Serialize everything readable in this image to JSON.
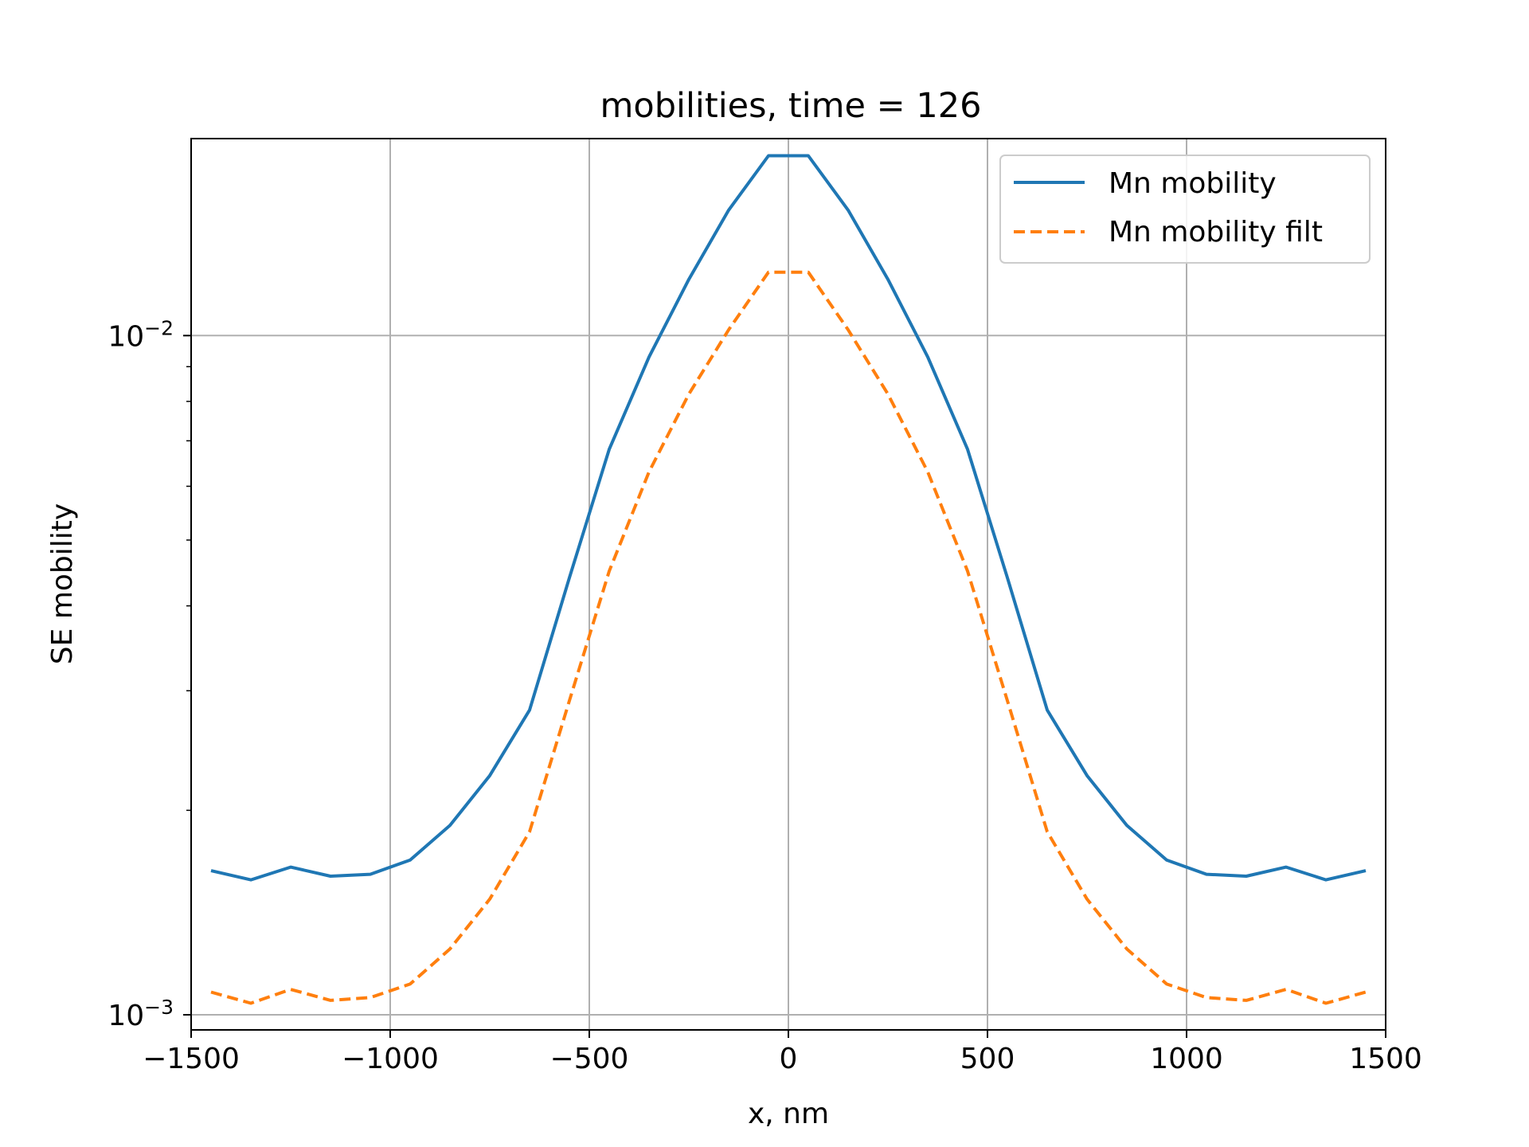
{
  "chart_data": {
    "type": "line",
    "title": "mobilities, time = 126",
    "xlabel": "x, nm",
    "ylabel": "SE mobility",
    "xlim": [
      -1500,
      1500
    ],
    "ylim": [
      0.00095,
      0.0195
    ],
    "yscale": "log",
    "grid": true,
    "legend_position": "top-right",
    "x_ticks": [
      -1500,
      -1000,
      -500,
      0,
      500,
      1000,
      1500
    ],
    "x_tick_labels": [
      "−1500",
      "−1000",
      "−500",
      "0",
      "500",
      "1000",
      "1500"
    ],
    "y_ticks": [
      0.001,
      0.01
    ],
    "y_tick_labels": [
      {
        "base": "10",
        "exp": "−3"
      },
      {
        "base": "10",
        "exp": "−2"
      }
    ],
    "y_minor_ticks": [
      0.002,
      0.003,
      0.004,
      0.005,
      0.006,
      0.007,
      0.008,
      0.009
    ],
    "x": [
      -1450,
      -1350,
      -1250,
      -1150,
      -1050,
      -950,
      -850,
      -750,
      -650,
      -550,
      -450,
      -350,
      -250,
      -150,
      -50,
      50,
      150,
      250,
      350,
      450,
      550,
      650,
      750,
      850,
      950,
      1050,
      1150,
      1250,
      1350,
      1450
    ],
    "series": [
      {
        "name": "Mn mobility",
        "color": "#1f77b4",
        "dash": "solid",
        "values": [
          0.00163,
          0.00158,
          0.00165,
          0.0016,
          0.00161,
          0.00169,
          0.0019,
          0.00225,
          0.00281,
          0.0044,
          0.0068,
          0.0093,
          0.0121,
          0.0153,
          0.0184,
          0.0184,
          0.0153,
          0.0121,
          0.0093,
          0.0068,
          0.0044,
          0.00281,
          0.00225,
          0.0019,
          0.00169,
          0.00161,
          0.0016,
          0.00165,
          0.00158,
          0.00163
        ]
      },
      {
        "name": "Mn mobility filt",
        "color": "#ff7f0e",
        "dash": "dashed",
        "values": [
          0.00108,
          0.00104,
          0.00109,
          0.00105,
          0.00106,
          0.00111,
          0.00125,
          0.00148,
          0.00186,
          0.0029,
          0.0045,
          0.0063,
          0.0082,
          0.0102,
          0.0124,
          0.0124,
          0.0102,
          0.0082,
          0.0063,
          0.0045,
          0.0029,
          0.00186,
          0.00148,
          0.00125,
          0.00111,
          0.00106,
          0.00105,
          0.00109,
          0.00104,
          0.00108
        ]
      }
    ]
  }
}
